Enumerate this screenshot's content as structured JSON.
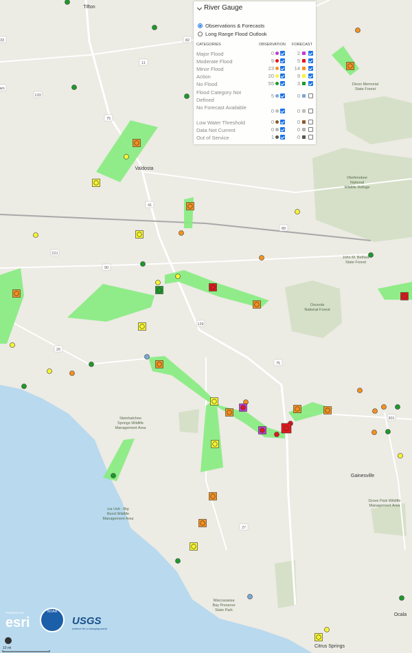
{
  "panel": {
    "title": "River Gauge",
    "options": [
      "Observations & Forecasts",
      "Long Range Flood Outlook"
    ],
    "headers": [
      "CATEGORIES",
      "OBSERVATION",
      "FORECAST"
    ],
    "rows": [
      {
        "name": "Major Flood",
        "observation": 0,
        "forecast": 2,
        "color": "#c23bd4"
      },
      {
        "name": "Moderate Flood",
        "observation": 9,
        "forecast": 5,
        "color": "#e3171b"
      },
      {
        "name": "Minor Flood",
        "observation": 23,
        "forecast": 14,
        "color": "#f5911f"
      },
      {
        "name": "Action",
        "observation": 20,
        "forecast": 9,
        "color": "#f6f532"
      },
      {
        "name": "No Flood",
        "observation": 55,
        "forecast": 3,
        "color": "#1d9a2b"
      },
      {
        "name": "Flood Category Not Defined",
        "observation": 5,
        "forecast": 0,
        "color": "#79a8d6"
      },
      {
        "name": "No Forecast Available",
        "observation": 0,
        "forecast": 0,
        "color": "#bdbdbd"
      },
      {
        "name": "Low Water Threshold",
        "observation": 0,
        "forecast": 0,
        "color": "#8a5a2c"
      },
      {
        "name": "Data Not Current",
        "observation": 0,
        "forecast": 0,
        "color": "#b3b3b3"
      },
      {
        "name": "Out of Service",
        "observation": 1,
        "forecast": 0,
        "color": "#555555"
      }
    ]
  },
  "map_labels": {
    "cities": [
      "Tifton",
      "Valdosta",
      "Gainesville",
      "Ocala",
      "Citrus Springs"
    ],
    "areas": [
      [
        "Dixon Memorial",
        "State Forest"
      ],
      [
        "Okefenokee",
        "National",
        "Wildlife Refuge"
      ],
      [
        "John M. Bethea",
        "State Forest"
      ],
      [
        "Osceola",
        "National Forest"
      ],
      [
        "Steinhatchee",
        "Springs Wildlife",
        "Management Area"
      ],
      [
        "ica Unit - Big",
        "Bend Wildlife",
        "Management Area"
      ],
      [
        "Grove Park Wildlife",
        "Management Area"
      ],
      [
        "Waccasassa",
        "Bay Preserve",
        "State Park"
      ]
    ],
    "routes": [
      "82",
      "11",
      "133",
      "75",
      "41",
      "89",
      "33",
      "221",
      "90",
      "129",
      "20",
      "75",
      "27",
      "301",
      "ain"
    ]
  },
  "scale": "10 mi",
  "logos": {
    "powered_by": "POWERED BY",
    "esri": "esri",
    "noaa": "NOAA",
    "usgs": "USGS",
    "usgs_tagline": "science for a changing world"
  }
}
